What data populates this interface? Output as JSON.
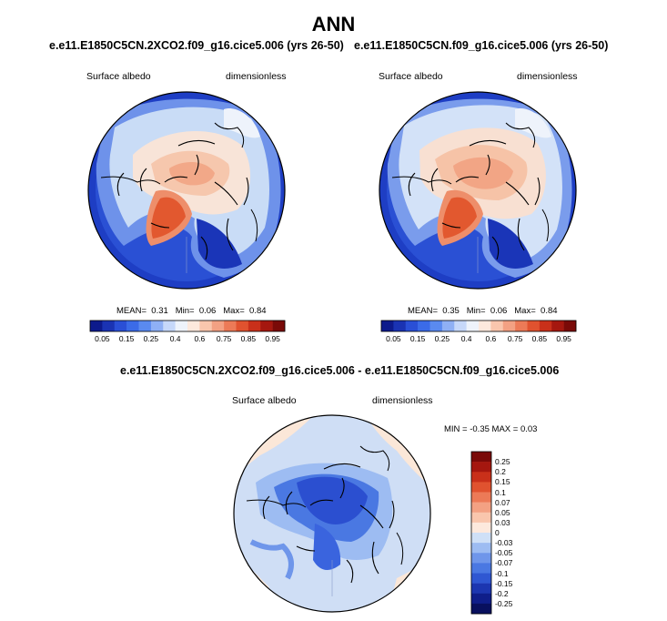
{
  "figure": {
    "title": "ANN"
  },
  "panels": [
    {
      "case": "e.e11.E1850C5CN.2XCO2.f09_g16.cice5.006 (yrs 26-50)",
      "variable": "Surface albedo",
      "units": "dimensionless",
      "stats": {
        "mean_label": "MEAN=",
        "mean": "0.31",
        "min_label": "Min=",
        "min": "0.06",
        "max_label": "Max=",
        "max": "0.84"
      }
    },
    {
      "case": "e.e11.E1850C5CN.f09_g16.cice5.006 (yrs 26-50)",
      "variable": "Surface albedo",
      "units": "dimensionless",
      "stats": {
        "mean_label": "MEAN=",
        "mean": "0.35",
        "min_label": "Min=",
        "min": "0.06",
        "max_label": "Max=",
        "max": "0.84"
      }
    },
    {
      "case": "e.e11.E1850C5CN.2XCO2.f09_g16.cice5.006 - e.e11.E1850C5CN.f09_g16.cice5.006",
      "variable": "Surface albedo",
      "units": "dimensionless",
      "stats": {
        "text": "MIN = -0.35 MAX = 0.03"
      }
    }
  ],
  "colorbar_abs": {
    "labels": [
      "0.05",
      "0.15",
      "0.25",
      "0.4",
      "0.6",
      "0.75",
      "0.85",
      "0.95"
    ],
    "colors": [
      "#0d1a8c",
      "#1a33b3",
      "#2a4fd6",
      "#3b6be8",
      "#5a8af0",
      "#8fb0f5",
      "#c6d8fa",
      "#eef3fb",
      "#fde9dd",
      "#f9c6ad",
      "#f3a183",
      "#ec7a57",
      "#e0522f",
      "#c9301a",
      "#a5170f",
      "#7a0a08"
    ]
  },
  "colorbar_diff": {
    "labels": [
      "0.25",
      "0.2",
      "0.15",
      "0.1",
      "0.07",
      "0.05",
      "0.03",
      "0",
      "-0.03",
      "-0.05",
      "-0.07",
      "-0.1",
      "-0.15",
      "-0.2",
      "-0.25"
    ],
    "colors": [
      "#7a0a08",
      "#a5170f",
      "#c9301a",
      "#e0522f",
      "#ec7a57",
      "#f3a183",
      "#f9c6ad",
      "#fde9dd",
      "#cfe0f7",
      "#9dbcf2",
      "#6f96ea",
      "#4a78e2",
      "#2f57d2",
      "#1c36b0",
      "#0f1e8a",
      "#08105e"
    ]
  },
  "map_colors": {
    "ocean_low": "#1e3ec4",
    "ocean_mid": "#3a64de",
    "land_snow": "#c9dcf6",
    "ice_light": "#f8e4d8",
    "ice_mid": "#f6bfa3",
    "ice_high": "#ee8e6a",
    "greenland": "#e2582f",
    "diff_background": "#cfdef5",
    "diff_strong": "#2b4fd0",
    "diff_positive": "#fbe7d8"
  }
}
